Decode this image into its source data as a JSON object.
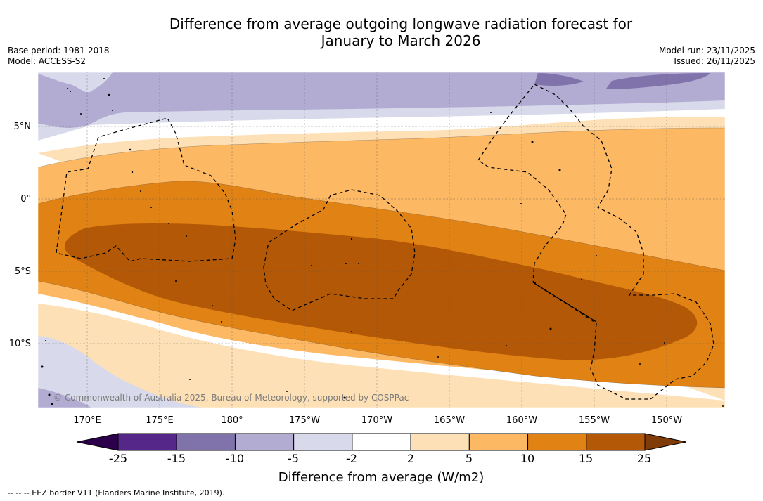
{
  "title": {
    "line1": "Difference from average outgoing longwave radiation forecast for",
    "line2": "January to March 2026"
  },
  "meta": {
    "base_period": "Base period: 1981-2018",
    "model": "Model: ACCESS-S2",
    "model_run": "Model run: 23/11/2025",
    "issued": "Issued: 26/11/2025"
  },
  "map": {
    "lon_labels": [
      "170°E",
      "175°E",
      "180°",
      "175°W",
      "170°W",
      "165°W",
      "160°W",
      "155°W",
      "150°W"
    ],
    "lat_labels": [
      "5°N",
      "0°",
      "5°S",
      "10°S"
    ],
    "credit": "© Commonwealth of Australia 2025, Bureau of Meteorology, supported by COSPPac"
  },
  "colorbar": {
    "ticks": [
      "-25",
      "-15",
      "-10",
      "-5",
      "-2",
      "2",
      "5",
      "10",
      "15",
      "25"
    ],
    "colors": [
      "#542788",
      "#8073ac",
      "#b2abd2",
      "#d8daeb",
      "#ffffff",
      "#fee0b6",
      "#fdb863",
      "#e08214",
      "#b35806"
    ],
    "under_color": "#2d004b",
    "over_color": "#7f3b08",
    "label": "Difference from average (W/m2)"
  },
  "footnote": "-- -- -- EEZ border V11 (Flanders Marine Institute, 2019)."
}
